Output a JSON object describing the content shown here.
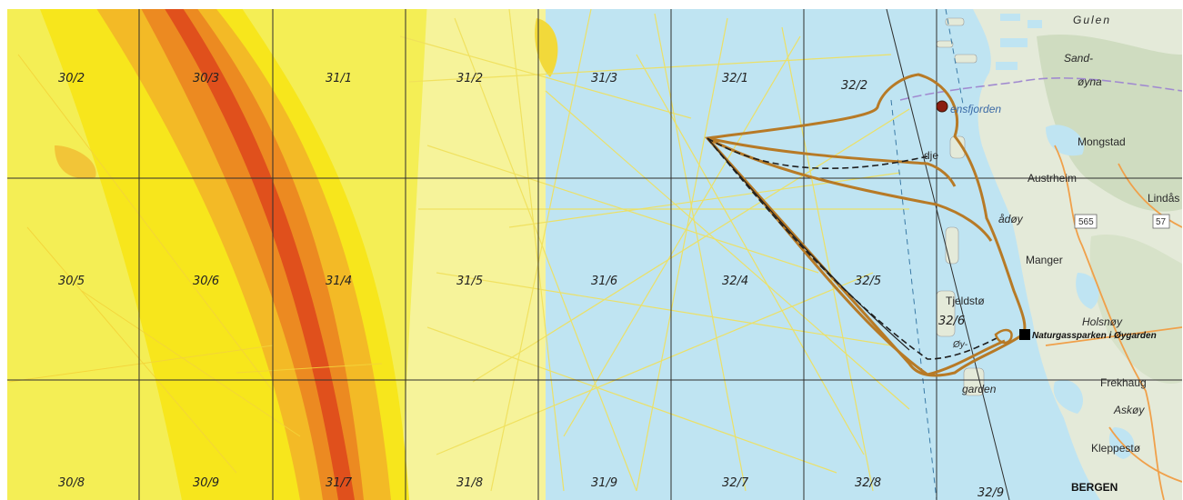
{
  "map": {
    "colors": {
      "sea": "#bfe4f2",
      "land": "#e4ead9",
      "land_dark": "#cfdcc0",
      "grid": "#2f2f2f",
      "density_low": "#f2ef6b",
      "density_mid": "#f6e21e",
      "density_high": "#f2a21a",
      "density_max": "#e2551e",
      "route": "#b77a26",
      "route_dashed": "#1f1f1f",
      "facility": "#000000",
      "road": "#f0a04a",
      "boundary": "#a18ad0"
    },
    "blocks": [
      {
        "id": "b-30-2",
        "label": "30/2"
      },
      {
        "id": "b-30-3",
        "label": "30/3"
      },
      {
        "id": "b-31-1",
        "label": "31/1"
      },
      {
        "id": "b-31-2",
        "label": "31/2"
      },
      {
        "id": "b-31-3",
        "label": "31/3"
      },
      {
        "id": "b-32-1",
        "label": "32/1"
      },
      {
        "id": "b-32-2",
        "label": "32/2"
      },
      {
        "id": "b-30-5",
        "label": "30/5"
      },
      {
        "id": "b-30-6",
        "label": "30/6"
      },
      {
        "id": "b-31-4",
        "label": "31/4"
      },
      {
        "id": "b-31-5",
        "label": "31/5"
      },
      {
        "id": "b-31-6",
        "label": "31/6"
      },
      {
        "id": "b-32-4",
        "label": "32/4"
      },
      {
        "id": "b-32-5",
        "label": "32/5"
      },
      {
        "id": "b-32-6",
        "label": "32/6"
      },
      {
        "id": "b-30-8",
        "label": "30/8"
      },
      {
        "id": "b-30-9",
        "label": "30/9"
      },
      {
        "id": "b-31-7",
        "label": "31/7"
      },
      {
        "id": "b-31-8",
        "label": "31/8"
      },
      {
        "id": "b-31-9",
        "label": "31/9"
      },
      {
        "id": "b-32-7",
        "label": "32/7"
      },
      {
        "id": "b-32-8",
        "label": "32/8"
      },
      {
        "id": "b-32-9",
        "label": "32/9"
      }
    ],
    "places": [
      {
        "id": "gulen",
        "label": "Gulen"
      },
      {
        "id": "sand",
        "label": "Sand-"
      },
      {
        "id": "oyna",
        "label": "øyna"
      },
      {
        "id": "fensfjorden",
        "label": "ensfjorden"
      },
      {
        "id": "mongstad",
        "label": "Mongstad"
      },
      {
        "id": "austrheim",
        "label": "Austrheim"
      },
      {
        "id": "lindas",
        "label": "Lindås"
      },
      {
        "id": "fedje",
        "label": "dje"
      },
      {
        "id": "radoy",
        "label": "ådøy"
      },
      {
        "id": "manger",
        "label": "Manger"
      },
      {
        "id": "tjeldsto",
        "label": "Tjeldstø"
      },
      {
        "id": "holsnoy",
        "label": "Holsnøy"
      },
      {
        "id": "oy",
        "label": "Øy-"
      },
      {
        "id": "garden",
        "label": "garden"
      },
      {
        "id": "frekhaug",
        "label": "Frekhaug"
      },
      {
        "id": "askoy",
        "label": "Askøy"
      },
      {
        "id": "kleppesto",
        "label": "Kleppestø"
      },
      {
        "id": "bergen",
        "label": "BERGEN"
      }
    ],
    "roads": [
      {
        "id": "road-565",
        "label": "565"
      },
      {
        "id": "road-57",
        "label": "57"
      }
    ],
    "facility": {
      "label": "Naturgassparken i Øygarden",
      "icon": "facility-square-icon"
    }
  }
}
